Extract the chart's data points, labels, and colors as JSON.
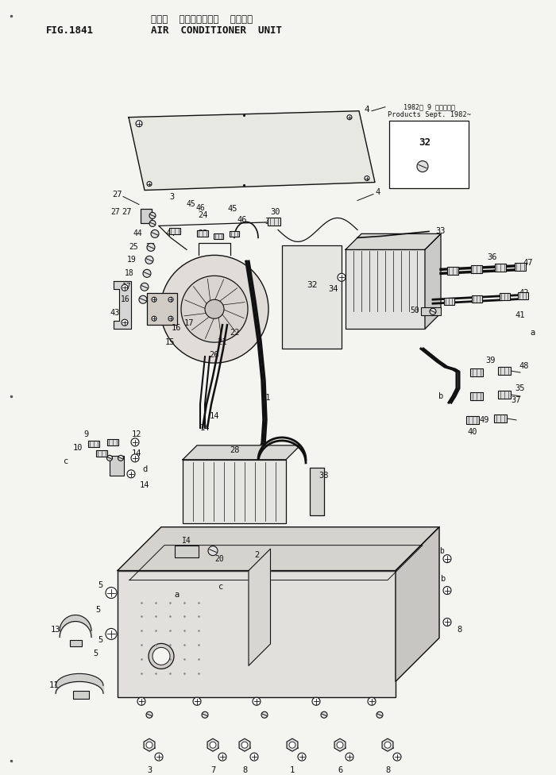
{
  "title_japanese": "エアー  コンディショナ  ユニット",
  "title_english": "AIR  CONDITIONER  UNIT",
  "fig_label": "FIG.1841",
  "bg": "#f4f4f0",
  "lc": "#111111",
  "tc": "#111111",
  "note_jp": "1982年 9 月製造以降",
  "note_en": "Products Sept. 1982~",
  "fig_w": 7.0,
  "fig_h": 9.76,
  "dpi": 100
}
